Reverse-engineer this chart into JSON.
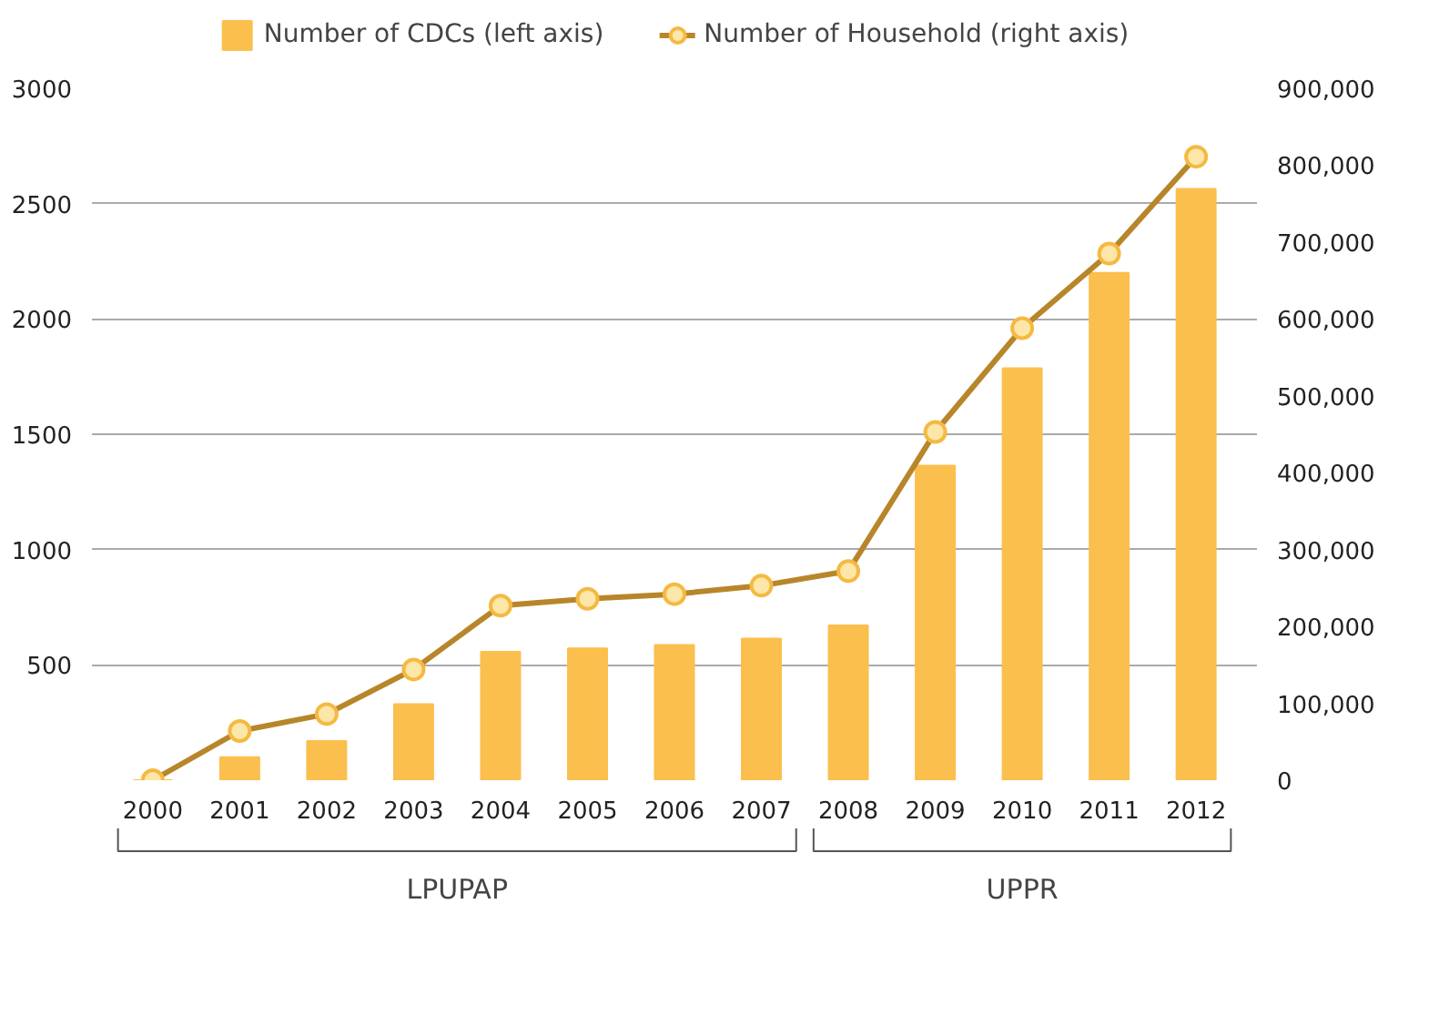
{
  "chart_data": {
    "type": "bar",
    "categories": [
      "2000",
      "2001",
      "2002",
      "2003",
      "2004",
      "2005",
      "2006",
      "2007",
      "2008",
      "2009",
      "2010",
      "2011",
      "2012"
    ],
    "series": [
      {
        "name": "Number of CDCs (left axis)",
        "color": "#fbbf4e",
        "values": [
          0,
          100,
          170,
          330,
          557,
          571,
          586,
          614,
          671,
          1364,
          1786,
          2200,
          2564
        ]
      },
      {
        "name": "Number of Household (right axis)",
        "type": "line",
        "axis": "y2",
        "color": "#b8862a",
        "marker": "circle",
        "values": [
          0,
          64000,
          86000,
          144000,
          227000,
          236000,
          242000,
          253000,
          272000,
          453000,
          588000,
          685000,
          811000
        ]
      }
    ],
    "ylim": [
      0,
      3000
    ],
    "yticks": [
      500,
      1000,
      1500,
      2000,
      2500,
      3000
    ],
    "y2lim": [
      0,
      900000
    ],
    "y2ticks": [
      0,
      {
        "value": 100000,
        "label": "100,000"
      },
      {
        "value": 200000,
        "label": "200,000"
      },
      {
        "value": 300000,
        "label": "300,000"
      },
      {
        "value": 400000,
        "label": "400,000"
      },
      {
        "value": 500000,
        "label": "500,000"
      },
      {
        "value": 600000,
        "label": "600,000"
      },
      {
        "value": 700000,
        "label": "700,000"
      },
      {
        "value": 800000,
        "label": "800,000"
      },
      {
        "value": 900000,
        "label": "900,000"
      }
    ],
    "annotations": [
      "LPUPAP",
      "UPPR"
    ],
    "grid": "y",
    "legend": "top"
  }
}
